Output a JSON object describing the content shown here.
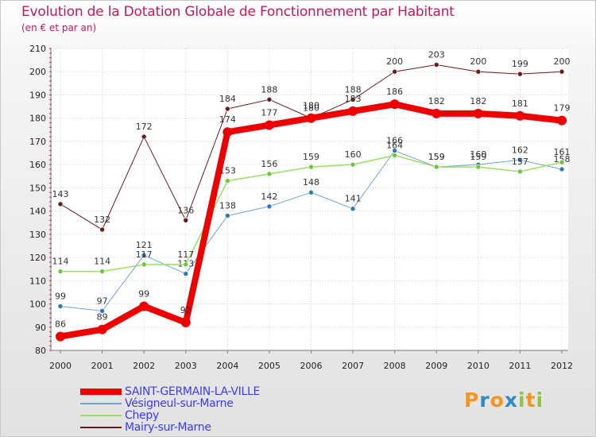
{
  "title": "Evolution de la Dotation Globale de Fonctionnement par Habitant",
  "subtitle": "(en € et par an)",
  "logo": {
    "text": "Proxiti",
    "colors": [
      "#f7941d",
      "#2d8bc9",
      "#f7941d",
      "#2d8bc9",
      "#8dc63f",
      "#f7941d",
      "#8dc63f"
    ]
  },
  "chart_data": {
    "type": "line",
    "title": "Evolution de la Dotation Globale de Fonctionnement par Habitant",
    "subtitle": "(en € et par an)",
    "xlabel": "",
    "ylabel": "",
    "categories": [
      "2000",
      "2001",
      "2002",
      "2003",
      "2004",
      "2005",
      "2006",
      "2007",
      "2008",
      "2009",
      "2010",
      "2011",
      "2012"
    ],
    "ylim": [
      80,
      210
    ],
    "yticks": [
      80,
      90,
      100,
      110,
      120,
      130,
      140,
      150,
      160,
      170,
      180,
      190,
      200,
      210
    ],
    "grid": true,
    "legend_position": "bottom-left",
    "series": [
      {
        "name": "Mairy-sur-Marne",
        "color": "#6b1a1a",
        "marker": "#6b1a1a",
        "width": 1,
        "labels": true,
        "values": [
          143,
          132,
          172,
          136,
          184,
          188,
          180,
          188,
          200,
          203,
          200,
          199,
          200
        ]
      },
      {
        "name": "Vésigneul-sur-Marne",
        "color": "#6fa3d0",
        "marker": "#2e78b8",
        "width": 1,
        "labels": true,
        "values": [
          99,
          97,
          121,
          113,
          138,
          142,
          148,
          141,
          166,
          159,
          160,
          162,
          158
        ]
      },
      {
        "name": "Chepy",
        "color": "#98e060",
        "marker": "#6cc83a",
        "width": 1.5,
        "labels": true,
        "values": [
          114,
          114,
          117,
          117,
          153,
          156,
          159,
          160,
          164,
          159,
          159,
          157,
          161
        ]
      },
      {
        "name": "SAINT-GERMAIN-LA-VILLE",
        "color": "#ee0000",
        "marker": "#ee0000",
        "width": 8,
        "labels": true,
        "values": [
          86,
          89,
          99,
          92,
          174,
          177,
          180,
          183,
          186,
          182,
          182,
          181,
          179
        ]
      }
    ],
    "legend_order": [
      "SAINT-GERMAIN-LA-VILLE",
      "Vésigneul-sur-Marne",
      "Chepy",
      "Mairy-sur-Marne"
    ]
  }
}
